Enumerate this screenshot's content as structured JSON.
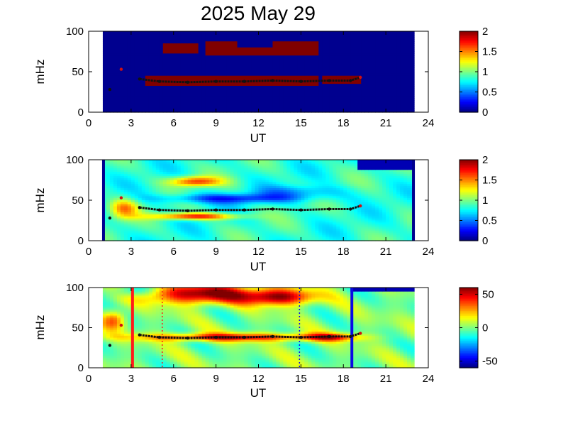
{
  "figure": {
    "title": "2025 May 29"
  },
  "colors": {
    "dark_blue": "#00008f",
    "dark_red": "#800000",
    "ridge": "#111111",
    "red_line": "#ff1a1a",
    "blue_line": "#0a0ae6"
  },
  "chart_data": [
    {
      "type": "heatmap",
      "xlabel": "UT",
      "ylabel": "mHz",
      "xlim": [
        0,
        24
      ],
      "ylim": [
        0,
        100
      ],
      "xticks": [
        "0",
        "3",
        "6",
        "9",
        "12",
        "15",
        "18",
        "21",
        "24"
      ],
      "yticks": [
        "0",
        "50",
        "100"
      ],
      "data_extent_hours": [
        1,
        23
      ],
      "colorbar": {
        "range": [
          0,
          2
        ],
        "ticks": [
          "0",
          "0.5",
          "1",
          "1.5",
          "2"
        ]
      },
      "features": [
        {
          "x": [
            4.0,
            16.2
          ],
          "y": [
            32,
            46
          ],
          "value": 2
        },
        {
          "x": [
            16.5,
            19.2
          ],
          "y": [
            34,
            44
          ],
          "value": 2
        },
        {
          "x": [
            5.2,
            7.8
          ],
          "y": [
            73,
            85
          ],
          "value": 2
        },
        {
          "x": [
            8.2,
            16.3
          ],
          "y": [
            70,
            87
          ],
          "value": 2
        }
      ]
    },
    {
      "type": "heatmap",
      "xlabel": "UT",
      "ylabel": "mHz",
      "xlim": [
        0,
        24
      ],
      "ylim": [
        0,
        100
      ],
      "xticks": [
        "0",
        "3",
        "6",
        "9",
        "12",
        "15",
        "18",
        "21",
        "24"
      ],
      "yticks": [
        "0",
        "50",
        "100"
      ],
      "data_extent_hours": [
        1,
        23
      ],
      "colorbar": {
        "range": [
          0,
          2
        ],
        "ticks": [
          "0",
          "0.5",
          "1",
          "1.5",
          "2"
        ]
      },
      "features": [
        {
          "x": [
            4.5,
            10.5
          ],
          "y": [
            26,
            34
          ],
          "value": 1.8
        },
        {
          "x": [
            5.5,
            9.0
          ],
          "y": [
            68,
            80
          ],
          "value": 1.8
        },
        {
          "x": [
            4.0,
            18.0
          ],
          "y": [
            46,
            60
          ],
          "value": 0.4
        }
      ]
    },
    {
      "type": "heatmap",
      "xlabel": "UT",
      "ylabel": "mHz",
      "xlim": [
        0,
        24
      ],
      "ylim": [
        0,
        100
      ],
      "xticks": [
        "0",
        "3",
        "6",
        "9",
        "12",
        "15",
        "18",
        "21",
        "24"
      ],
      "yticks": [
        "0",
        "50",
        "100"
      ],
      "data_extent_hours": [
        1,
        23
      ],
      "colorbar": {
        "range": [
          -60,
          60
        ],
        "ticks": [
          "50",
          "0",
          "-50"
        ]
      },
      "features": [
        {
          "x": [
            5.0,
            16.0
          ],
          "y": [
            70,
            100
          ],
          "value": 60
        },
        {
          "x": [
            3.5,
            18.5
          ],
          "y": [
            33,
            46
          ],
          "value": 45
        }
      ],
      "vertical_lines": [
        {
          "x": 3.1,
          "color": "red",
          "style": "solid"
        },
        {
          "x": 5.2,
          "color": "red",
          "style": "dotted"
        },
        {
          "x": 14.9,
          "color": "blue",
          "style": "dotted"
        },
        {
          "x": 18.6,
          "color": "blue",
          "style": "solid"
        }
      ]
    }
  ],
  "ridge_track": {
    "points": [
      [
        1.5,
        28
      ],
      [
        2.3,
        53
      ],
      [
        3.6,
        41
      ],
      [
        5,
        38
      ],
      [
        7,
        37
      ],
      [
        9,
        38
      ],
      [
        11,
        38
      ],
      [
        13,
        39
      ],
      [
        15,
        38
      ],
      [
        17,
        39
      ],
      [
        18.5,
        39
      ],
      [
        19.2,
        43
      ]
    ]
  }
}
